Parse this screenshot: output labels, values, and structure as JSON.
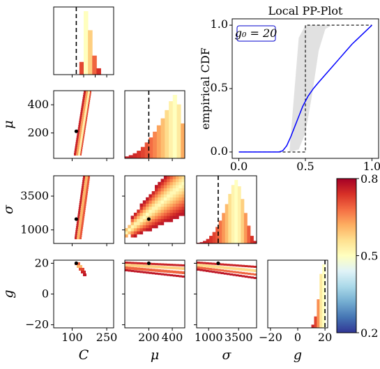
{
  "chart_data": {
    "type": "corner-plot",
    "parameters": [
      "C",
      "μ",
      "σ",
      "g"
    ],
    "corner_x_ticks": {
      "C": [
        "100",
        "250"
      ],
      "mu": [
        "200",
        "400"
      ],
      "sigma": [
        "1000",
        "3500"
      ],
      "g": [
        "−20",
        "0",
        "20"
      ]
    },
    "corner_y_ticks": {
      "mu": [
        "200",
        "400"
      ],
      "sigma": [
        "1000",
        "3500"
      ],
      "g": [
        "−20",
        "0",
        "20"
      ]
    },
    "ranges": {
      "C": [
        20,
        280
      ],
      "mu": [
        20,
        500
      ],
      "sigma": [
        0,
        5000
      ],
      "g": [
        -22,
        22
      ]
    },
    "truth": {
      "C": 118,
      "mu": 212,
      "sigma": 1800,
      "g": 20
    },
    "pp_plot": {
      "type": "line",
      "title": "Local PP-Plot",
      "ylabel": "empirical CDF",
      "annotation": "g₀ = 20",
      "x_ticks": [
        "0.0",
        "0.5",
        "1.0"
      ],
      "y_ticks": [
        "0.0",
        "0.5",
        "1.0"
      ],
      "xlim": [
        -0.05,
        1.05
      ],
      "ylim": [
        -0.05,
        1.05
      ],
      "band_color": "#d9d9d9",
      "line_color": "#0000ff",
      "series": [
        {
          "x": [
            0.0,
            0.3,
            0.33,
            0.36,
            0.39,
            0.42,
            0.45,
            0.48,
            0.52,
            0.56,
            0.6,
            0.65,
            0.7,
            0.75,
            0.8,
            0.85,
            0.9,
            0.95,
            1.0
          ],
          "y": [
            0.0,
            0.0,
            0.01,
            0.05,
            0.12,
            0.2,
            0.28,
            0.36,
            0.44,
            0.5,
            0.55,
            0.61,
            0.67,
            0.73,
            0.79,
            0.85,
            0.9,
            0.95,
            1.0
          ]
        }
      ],
      "reference_step": {
        "x": [
          0.0,
          0.375,
          0.5,
          0.5,
          0.85,
          1.0
        ],
        "y": [
          0.0,
          0.0,
          0.0,
          1.0,
          1.0,
          1.0
        ]
      },
      "band": {
        "x": [
          0.38,
          0.45,
          0.5,
          0.55,
          0.6,
          0.65,
          0.7
        ],
        "lower": [
          0.0,
          0.02,
          0.15,
          0.45,
          0.8,
          0.97,
          1.0
        ],
        "upper": [
          0.0,
          0.9,
          1.0,
          1.0,
          1.0,
          1.0,
          1.0
        ]
      }
    },
    "colorbar": {
      "ticks": [
        "0.8",
        "0.5",
        "0.2"
      ],
      "colors": [
        "#a50026",
        "#d73027",
        "#f46d43",
        "#fdae61",
        "#fee090",
        "#ffffbf",
        "#e0f3f8",
        "#abd9e9",
        "#74add1",
        "#4575b4",
        "#313695"
      ]
    },
    "marginals": {
      "C": [
        0,
        0,
        0,
        0,
        0,
        0,
        0.2,
        1.0,
        0.7,
        0.3,
        0.1,
        0,
        0,
        0
      ],
      "mu": [
        0.03,
        0.05,
        0.08,
        0.12,
        0.18,
        0.25,
        0.33,
        0.42,
        0.52,
        0.63,
        0.76,
        0.9,
        1.0,
        0.85,
        0.55
      ],
      "sigma": [
        0.01,
        0.02,
        0.04,
        0.07,
        0.12,
        0.18,
        0.26,
        0.36,
        0.48,
        0.62,
        0.78,
        0.92,
        1.0,
        0.9,
        0.7,
        0.48,
        0.28,
        0.12,
        0.04
      ],
      "g": [
        0,
        0,
        0,
        0,
        0,
        0,
        0,
        0,
        0,
        0,
        0,
        0,
        0,
        0,
        0,
        0,
        0.05,
        0.18,
        0.45,
        0.85,
        1.0,
        0
      ]
    }
  }
}
